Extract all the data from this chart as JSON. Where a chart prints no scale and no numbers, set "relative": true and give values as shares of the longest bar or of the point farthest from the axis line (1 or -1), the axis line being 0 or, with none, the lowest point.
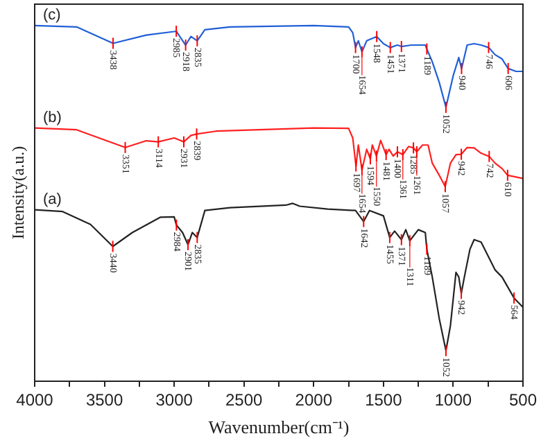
{
  "chart_data": {
    "type": "line",
    "relative": true,
    "xlabel": "Wavenumber(cm⁻¹)",
    "ylabel": "Intensity(a.u.)",
    "xlim": [
      4000,
      500
    ],
    "xticks": [
      4000,
      {
        "value": 3750,
        "label": null
      },
      3500,
      {
        "value": 3250,
        "label": null
      },
      3000,
      {
        "value": 2750,
        "label": null
      },
      2500,
      {
        "value": 2250,
        "label": null
      },
      2000,
      {
        "value": 1750,
        "label": null
      },
      1500,
      {
        "value": 1250,
        "label": null
      },
      1000,
      {
        "value": 750,
        "label": null
      },
      500
    ],
    "grid": false,
    "legend": false,
    "marker": "none",
    "line_style": "solid",
    "series": [
      {
        "name": "(c)",
        "color": "#1f5fd6",
        "x": [
          4000,
          3700,
          3438,
          3200,
          3000,
          2985,
          2918,
          2880,
          2835,
          2780,
          2600,
          2000,
          1750,
          1720,
          1700,
          1680,
          1654,
          1620,
          1548,
          1500,
          1451,
          1400,
          1371,
          1300,
          1200,
          1189,
          1150,
          1100,
          1052,
          1000,
          960,
          940,
          900,
          850,
          800,
          746,
          700,
          650,
          606,
          550,
          500
        ],
        "values": [
          1.0,
          0.996,
          0.95,
          0.973,
          0.983,
          0.984,
          0.945,
          0.969,
          0.957,
          0.988,
          0.996,
          1.0,
          0.996,
          0.98,
          0.938,
          0.957,
          0.926,
          0.957,
          0.969,
          0.949,
          0.938,
          0.945,
          0.941,
          0.945,
          0.945,
          0.934,
          0.898,
          0.84,
          0.77,
          0.859,
          0.91,
          0.879,
          0.945,
          0.949,
          0.945,
          0.938,
          0.918,
          0.906,
          0.879,
          0.871,
          0.871
        ]
      },
      {
        "name": "(b)",
        "color": "#ff2020",
        "x": [
          4000,
          3700,
          3351,
          3200,
          3114,
          3000,
          2931,
          2880,
          2839,
          2700,
          2000,
          1750,
          1720,
          1697,
          1680,
          1654,
          1620,
          1594,
          1580,
          1550,
          1520,
          1481,
          1460,
          1430,
          1400,
          1361,
          1320,
          1285,
          1261,
          1220,
          1180,
          1150,
          1100,
          1057,
          1020,
          980,
          942,
          900,
          850,
          800,
          742,
          700,
          650,
          610,
          550,
          500
        ],
        "values": [
          0.712,
          0.707,
          0.657,
          0.676,
          0.673,
          0.684,
          0.673,
          0.691,
          0.695,
          0.703,
          0.712,
          0.711,
          0.684,
          0.605,
          0.664,
          0.594,
          0.652,
          0.625,
          0.664,
          0.633,
          0.677,
          0.637,
          0.652,
          0.633,
          0.645,
          0.637,
          0.66,
          0.656,
          0.645,
          0.664,
          0.664,
          0.613,
          0.579,
          0.547,
          0.613,
          0.637,
          0.638,
          0.657,
          0.656,
          0.641,
          0.632,
          0.613,
          0.598,
          0.579,
          0.574,
          0.57
        ]
      },
      {
        "name": "(a)",
        "color": "#222222",
        "x": [
          4000,
          3800,
          3600,
          3440,
          3300,
          3100,
          3000,
          2984,
          2940,
          2901,
          2870,
          2835,
          2780,
          2600,
          2200,
          2150,
          2100,
          1900,
          1700,
          1642,
          1600,
          1500,
          1455,
          1420,
          1371,
          1340,
          1311,
          1250,
          1200,
          1189,
          1150,
          1100,
          1052,
          1020,
          980,
          960,
          942,
          920,
          880,
          850,
          800,
          750,
          700,
          650,
          564,
          500
        ],
        "values": [
          0.482,
          0.477,
          0.441,
          0.379,
          0.418,
          0.461,
          0.462,
          0.439,
          0.418,
          0.384,
          0.418,
          0.404,
          0.48,
          0.488,
          0.495,
          0.5,
          0.492,
          0.484,
          0.48,
          0.449,
          0.48,
          0.465,
          0.404,
          0.422,
          0.398,
          0.426,
          0.395,
          0.426,
          0.418,
          0.371,
          0.293,
          0.176,
          0.086,
          0.156,
          0.306,
          0.293,
          0.247,
          0.293,
          0.371,
          0.398,
          0.391,
          0.352,
          0.313,
          0.293,
          0.234,
          0.208
        ]
      }
    ],
    "annotations": [
      {
        "text": "3438",
        "x": 3438,
        "y": 0.95
      },
      {
        "text": "2985",
        "x": 2985,
        "y": 0.984
      },
      {
        "text": "2918",
        "x": 2918,
        "y": 0.945
      },
      {
        "text": "2835",
        "x": 2835,
        "y": 0.957
      },
      {
        "text": "1700",
        "x": 1700,
        "y": 0.938
      },
      {
        "text": "1654",
        "x": 1654,
        "y": 0.926
      },
      {
        "text": "1548",
        "x": 1548,
        "y": 0.969
      },
      {
        "text": "1451",
        "x": 1451,
        "y": 0.938
      },
      {
        "text": "1371",
        "x": 1371,
        "y": 0.941
      },
      {
        "text": "1189",
        "x": 1189,
        "y": 0.934
      },
      {
        "text": "1052",
        "x": 1052,
        "y": 0.77
      },
      {
        "text": "940",
        "x": 940,
        "y": 0.879
      },
      {
        "text": "746",
        "x": 746,
        "y": 0.938
      },
      {
        "text": "606",
        "x": 606,
        "y": 0.879
      },
      {
        "text": "3351",
        "x": 3351,
        "y": 0.657
      },
      {
        "text": "3114",
        "x": 3114,
        "y": 0.673
      },
      {
        "text": "2931",
        "x": 2931,
        "y": 0.673
      },
      {
        "text": "2839",
        "x": 2839,
        "y": 0.695
      },
      {
        "text": "1697",
        "x": 1697,
        "y": 0.605
      },
      {
        "text": "1654",
        "x": 1654,
        "y": 0.594
      },
      {
        "text": "1594",
        "x": 1594,
        "y": 0.625
      },
      {
        "text": "1550",
        "x": 1550,
        "y": 0.633
      },
      {
        "text": "1481",
        "x": 1481,
        "y": 0.637
      },
      {
        "text": "1400",
        "x": 1400,
        "y": 0.645
      },
      {
        "text": "1361",
        "x": 1361,
        "y": 0.637
      },
      {
        "text": "1285",
        "x": 1285,
        "y": 0.656
      },
      {
        "text": "1261",
        "x": 1261,
        "y": 0.645
      },
      {
        "text": "1057",
        "x": 1057,
        "y": 0.547
      },
      {
        "text": "942",
        "x": 942,
        "y": 0.638
      },
      {
        "text": "742",
        "x": 742,
        "y": 0.632
      },
      {
        "text": "610",
        "x": 610,
        "y": 0.579
      },
      {
        "text": "3440",
        "x": 3440,
        "y": 0.379
      },
      {
        "text": "2984",
        "x": 2984,
        "y": 0.439
      },
      {
        "text": "2901",
        "x": 2901,
        "y": 0.384
      },
      {
        "text": "2835",
        "x": 2835,
        "y": 0.404
      },
      {
        "text": "1642",
        "x": 1642,
        "y": 0.449
      },
      {
        "text": "1455",
        "x": 1455,
        "y": 0.404
      },
      {
        "text": "1371",
        "x": 1371,
        "y": 0.398
      },
      {
        "text": "1311",
        "x": 1311,
        "y": 0.395
      },
      {
        "text": "1189",
        "x": 1189,
        "y": 0.371
      },
      {
        "text": "1052",
        "x": 1052,
        "y": 0.086
      },
      {
        "text": "942",
        "x": 942,
        "y": 0.247
      },
      {
        "text": "564",
        "x": 564,
        "y": 0.234
      }
    ]
  }
}
